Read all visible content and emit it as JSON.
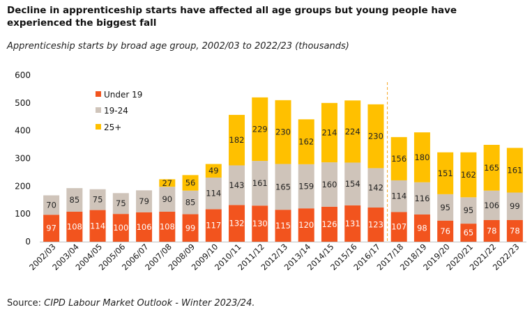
{
  "page": {
    "title": "Decline in apprenticeship starts have affected all age groups but young people have experienced the biggest fall",
    "subtitle": "Apprenticeship starts by broad age group, 2002/03 to 2022/23 (thousands)",
    "source_prefix": "Source: ",
    "source_name": "CIPD Labour Market Outlook - Winter 2023/24."
  },
  "colors": {
    "under19": "#f2541e",
    "age19_24": "#cfc4ba",
    "age25plus": "#ffc000",
    "divider": "#f5a623",
    "axis": "#bfbfbf"
  },
  "chart_data": {
    "type": "bar",
    "stacked": true,
    "title": "Apprenticeship starts by broad age group, 2002/03 to 2022/23 (thousands)",
    "ylim": [
      0,
      600
    ],
    "yticks": [
      0,
      100,
      200,
      300,
      400,
      500,
      600
    ],
    "categories": [
      "2002/03",
      "2003/04",
      "2004/05",
      "2005/06",
      "2006/07",
      "2007/08",
      "2008/09",
      "2009/10",
      "2010/11",
      "2011/12",
      "2012/13",
      "2013/14",
      "2014/15",
      "2015/16",
      "2016/17",
      "2017/18",
      "2018/19",
      "2019/20",
      "2020/21",
      "2021/22",
      "2022/23"
    ],
    "series": [
      {
        "name": "Under 19",
        "color_key": "under19",
        "label_color": "#ffffff",
        "values": [
          97,
          108,
          114,
          100,
          106,
          108,
          99,
          117,
          132,
          130,
          115,
          120,
          126,
          131,
          123,
          107,
          98,
          76,
          65,
          78,
          78
        ]
      },
      {
        "name": "19-24",
        "color_key": "age19_24",
        "label_color": "#222222",
        "values": [
          70,
          85,
          75,
          75,
          79,
          90,
          85,
          114,
          143,
          161,
          165,
          159,
          160,
          154,
          142,
          114,
          116,
          95,
          95,
          106,
          99
        ]
      },
      {
        "name": "25+",
        "color_key": "age25plus",
        "label_color": "#222222",
        "values": [
          0,
          0,
          0,
          0,
          0,
          27,
          56,
          49,
          182,
          229,
          230,
          162,
          214,
          224,
          230,
          156,
          180,
          151,
          162,
          165,
          161
        ]
      }
    ],
    "divider_after_category": "2016/17",
    "legend": [
      "Under 19",
      "19-24",
      "25+"
    ],
    "legend_position": "top-left"
  }
}
